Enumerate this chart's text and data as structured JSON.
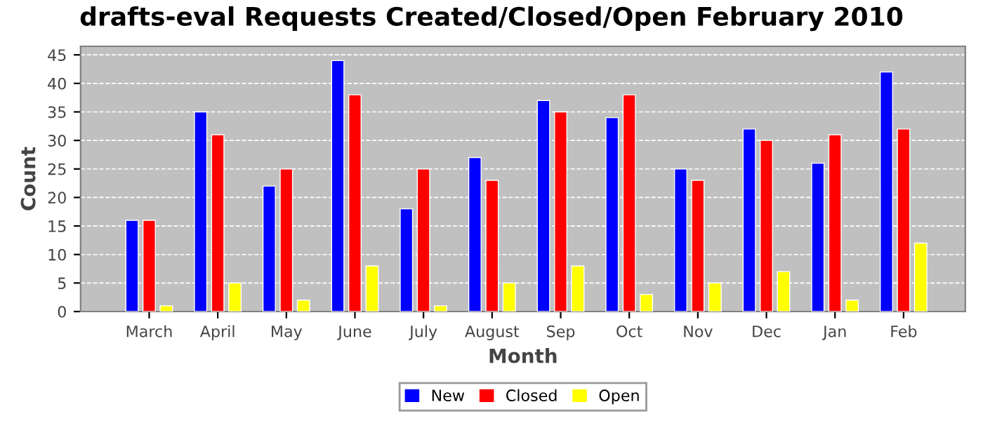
{
  "chart_data": {
    "type": "bar",
    "title": "drafts-eval Requests Created/Closed/Open February 2010",
    "xlabel": "Month",
    "ylabel": "Count",
    "categories": [
      "March",
      "April",
      "May",
      "June",
      "July",
      "August",
      "Sep",
      "Oct",
      "Nov",
      "Dec",
      "Jan",
      "Feb"
    ],
    "series": [
      {
        "name": "New",
        "color": "#0000ff",
        "values": [
          16,
          35,
          22,
          44,
          18,
          27,
          37,
          34,
          25,
          32,
          26,
          42
        ]
      },
      {
        "name": "Closed",
        "color": "#ff0000",
        "values": [
          16,
          31,
          25,
          38,
          25,
          23,
          35,
          38,
          23,
          30,
          31,
          32
        ]
      },
      {
        "name": "Open",
        "color": "#ffff00",
        "values": [
          1,
          5,
          2,
          8,
          1,
          5,
          8,
          3,
          5,
          7,
          2,
          12
        ]
      }
    ],
    "ylim": [
      0,
      46.5
    ],
    "yticks": [
      0,
      5,
      10,
      15,
      20,
      25,
      30,
      35,
      40,
      45
    ],
    "grid": "y",
    "legend": "bottom"
  }
}
